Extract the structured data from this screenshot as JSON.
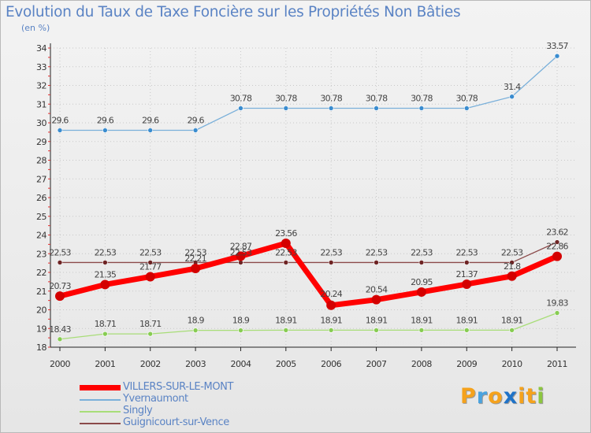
{
  "header": {
    "title": "Evolution du Taux de Taxe Foncière sur les Propriétés Non Bâties",
    "unit": "(en %)"
  },
  "logo": {
    "letters": [
      "P",
      "r",
      "o",
      "x",
      "i",
      "t",
      "i"
    ],
    "colors": [
      "#f5a21c",
      "#4aa3df",
      "#f5a21c",
      "#1f73c8",
      "#f5a21c",
      "#f5a21c",
      "#8cc63f"
    ]
  },
  "chart_data": {
    "type": "line",
    "title": "Evolution du Taux de Taxe Foncière sur les Propriétés Non Bâties",
    "ylabel": "(en %)",
    "xlabel": "",
    "x": [
      "2000",
      "2001",
      "2002",
      "2003",
      "2004",
      "2005",
      "2006",
      "2007",
      "2008",
      "2009",
      "2010",
      "2011"
    ],
    "ylim": [
      18,
      34
    ],
    "yticks": [
      18,
      19,
      20,
      21,
      22,
      23,
      24,
      25,
      26,
      27,
      28,
      29,
      30,
      31,
      32,
      33,
      34
    ],
    "legend_position": "bottom-left",
    "series": [
      {
        "name": "VILLERS-SUR-LE-MONT",
        "color": "#ff0000",
        "marker": "#d40000",
        "width": 7,
        "values": [
          20.73,
          21.35,
          21.77,
          22.21,
          22.87,
          23.56,
          20.24,
          20.54,
          20.95,
          21.37,
          21.8,
          22.86
        ],
        "labels": [
          "20.73",
          "21.35",
          "21.77",
          "22.21",
          "22.87",
          "23.56",
          "20.24",
          "20.54",
          "20.95",
          "21.37",
          "21.8",
          "22.86"
        ]
      },
      {
        "name": "Yvernaumont",
        "color": "#7ab0da",
        "marker": "#3a8ccf",
        "width": 1.3,
        "values": [
          29.6,
          29.6,
          29.6,
          29.6,
          30.78,
          30.78,
          30.78,
          30.78,
          30.78,
          30.78,
          31.4,
          33.57
        ],
        "labels": [
          "29.6",
          "29.6",
          "29.6",
          "29.6",
          "30.78",
          "30.78",
          "30.78",
          "30.78",
          "30.78",
          "30.78",
          "31.4",
          "33.57"
        ]
      },
      {
        "name": "Singly",
        "color": "#a8dd78",
        "marker": "#87cc52",
        "width": 1.3,
        "values": [
          18.43,
          18.71,
          18.71,
          18.9,
          18.9,
          18.91,
          18.91,
          18.91,
          18.91,
          18.91,
          18.91,
          19.83
        ],
        "labels": [
          "18.43",
          "18.71",
          "18.71",
          "18.9",
          "18.9",
          "18.91",
          "18.91",
          "18.91",
          "18.91",
          "18.91",
          "18.91",
          "19.83"
        ]
      },
      {
        "name": "Guignicourt-sur-Vence",
        "color": "#8b4a4a",
        "marker": "#6e2424",
        "width": 1.3,
        "values": [
          22.53,
          22.53,
          22.53,
          22.53,
          22.53,
          22.53,
          22.53,
          22.53,
          22.53,
          22.53,
          22.53,
          23.62
        ],
        "labels": [
          "22.53",
          "22.53",
          "22.53",
          "22.53",
          "22.53",
          "22.53",
          "22.53",
          "22.53",
          "22.53",
          "22.53",
          "22.53",
          "23.62"
        ]
      }
    ]
  }
}
